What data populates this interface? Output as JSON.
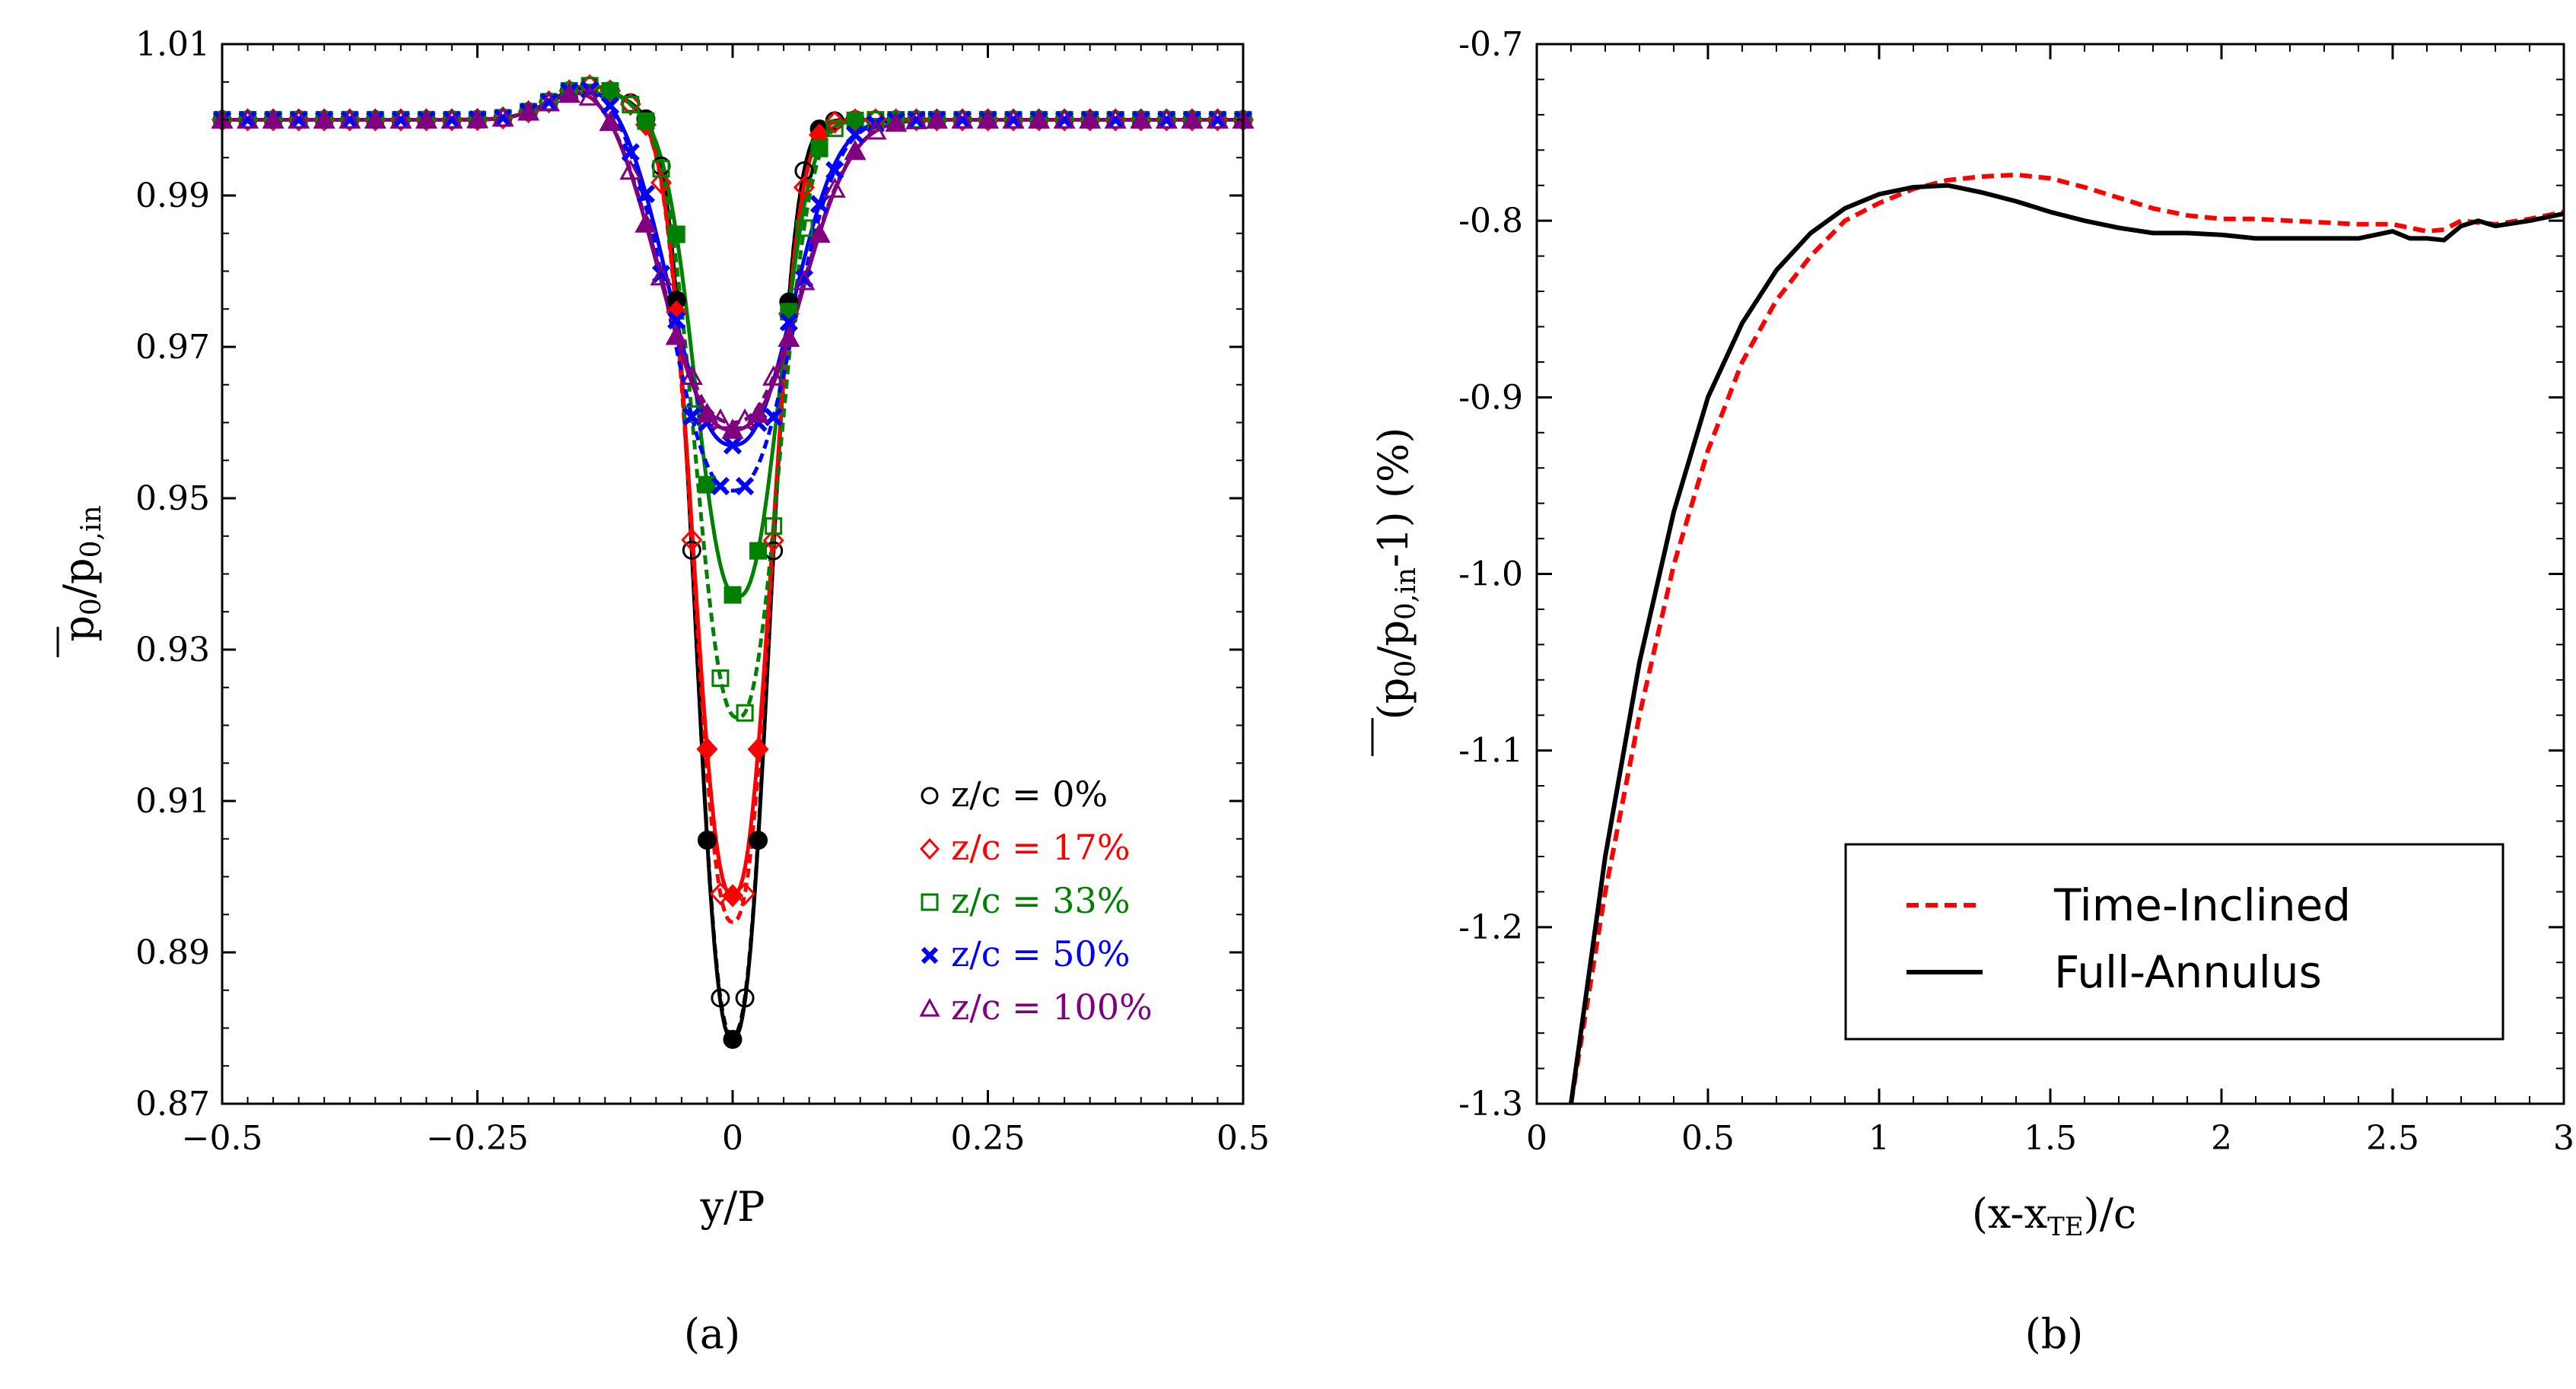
{
  "chart_data": [
    {
      "type": "line",
      "panel_label": "(a)",
      "xlabel": "y/P",
      "ylabel": "p0/p0,in (overlined)",
      "ylabel_main": "p",
      "ylabel_sub1": "0",
      "ylabel_slash": "/p",
      "ylabel_sub2": "0,in",
      "xlim": [
        -0.5,
        0.5
      ],
      "ylim": [
        0.87,
        1.01
      ],
      "xticks": [
        -0.5,
        -0.25,
        0,
        0.25,
        0.5
      ],
      "xtick_labels": [
        "−0.5",
        "−0.25",
        "0",
        "0.25",
        "0.5"
      ],
      "yticks": [
        0.87,
        0.89,
        0.91,
        0.93,
        0.95,
        0.97,
        0.99,
        1.01
      ],
      "ytick_labels": [
        "0.87",
        "0.89",
        "0.91",
        "0.93",
        "0.95",
        "0.97",
        "0.99",
        "1.01"
      ],
      "legend_location": "lower-right",
      "series": [
        {
          "name": "z/c = 0%",
          "label_text": "z/c = 0%",
          "color": "#000000",
          "marker": "circle",
          "center": 0.0,
          "base": 1.0,
          "min_a": 0.8785,
          "min_b": 0.879,
          "half_width": 0.045
        },
        {
          "name": "z/c = 17%",
          "label_text": "z/c = 17%",
          "color": "#ff0000",
          "marker": "diamond",
          "center": 0.0,
          "base": 1.0,
          "min_a": 0.8975,
          "min_b": 0.894,
          "half_width": 0.048
        },
        {
          "name": "z/c = 33%",
          "label_text": "z/c = 33%",
          "color": "#008000",
          "marker": "square",
          "center": 0.005,
          "base": 1.0,
          "min_a": 0.937,
          "min_b": 0.921,
          "half_width": 0.052
        },
        {
          "name": "z/c = 50%",
          "label_text": "z/c = 50%",
          "color": "#0000ff",
          "marker": "x",
          "center": 0.0,
          "base": 1.0,
          "min_a": 0.957,
          "min_b": 0.951,
          "half_width": 0.075
        },
        {
          "name": "z/c = 100%",
          "label_text": "z/c = 100%",
          "color": "#800080",
          "marker": "triangle",
          "center": 0.0,
          "base": 1.0,
          "min_a": 0.959,
          "min_b": 0.96,
          "half_width": 0.085
        }
      ]
    },
    {
      "type": "line",
      "panel_label": "(b)",
      "xlabel": "(x-xTE)/c",
      "xlabel_part1": "(x-x",
      "xlabel_sub": "TE",
      "xlabel_part2": ")/c",
      "ylabel": "(p0/p0,in-1) (%)",
      "ylabel_open": "(p",
      "ylabel_sub1": "0",
      "ylabel_slash": "/p",
      "ylabel_sub2": "0,in",
      "ylabel_tail": "-1) (%)",
      "xlim": [
        0,
        3
      ],
      "ylim": [
        -1.3,
        -0.7
      ],
      "xticks": [
        0,
        0.5,
        1,
        1.5,
        2,
        2.5,
        3
      ],
      "xtick_labels": [
        "0",
        "0.5",
        "1",
        "1.5",
        "2",
        "2.5",
        "3"
      ],
      "yticks": [
        -1.3,
        -1.2,
        -1.1,
        -1.0,
        -0.9,
        -0.8,
        -0.7
      ],
      "ytick_labels": [
        "-1.3",
        "-1.2",
        "-1.1",
        "-1.0",
        "-0.9",
        "-0.8",
        "-0.7"
      ],
      "legend_location": "lower-right",
      "series": [
        {
          "name": "Time-Inclined",
          "color": "#ff0000",
          "dashed": true,
          "x": [
            0.1,
            0.15,
            0.2,
            0.3,
            0.4,
            0.5,
            0.6,
            0.7,
            0.8,
            0.9,
            1.0,
            1.1,
            1.2,
            1.3,
            1.4,
            1.5,
            1.6,
            1.7,
            1.8,
            1.9,
            2.0,
            2.1,
            2.2,
            2.3,
            2.4,
            2.5,
            2.6,
            2.65,
            2.7,
            2.75,
            2.8,
            2.9,
            3.0
          ],
          "y": [
            -1.3,
            -1.24,
            -1.18,
            -1.08,
            -0.995,
            -0.93,
            -0.88,
            -0.845,
            -0.82,
            -0.8,
            -0.79,
            -0.782,
            -0.777,
            -0.775,
            -0.774,
            -0.776,
            -0.781,
            -0.787,
            -0.793,
            -0.797,
            -0.799,
            -0.799,
            -0.8,
            -0.801,
            -0.802,
            -0.802,
            -0.806,
            -0.805,
            -0.8,
            -0.801,
            -0.802,
            -0.799,
            -0.795
          ]
        },
        {
          "name": "Full-Annulus",
          "color": "#000000",
          "dashed": false,
          "x": [
            0.1,
            0.15,
            0.2,
            0.3,
            0.4,
            0.5,
            0.6,
            0.7,
            0.8,
            0.9,
            1.0,
            1.1,
            1.2,
            1.3,
            1.4,
            1.5,
            1.6,
            1.7,
            1.8,
            1.9,
            2.0,
            2.1,
            2.2,
            2.3,
            2.4,
            2.5,
            2.55,
            2.6,
            2.65,
            2.7,
            2.75,
            2.8,
            2.9,
            3.0
          ],
          "y": [
            -1.3,
            -1.23,
            -1.16,
            -1.05,
            -0.965,
            -0.9,
            -0.858,
            -0.828,
            -0.807,
            -0.793,
            -0.785,
            -0.781,
            -0.78,
            -0.784,
            -0.789,
            -0.795,
            -0.8,
            -0.804,
            -0.807,
            -0.807,
            -0.808,
            -0.81,
            -0.81,
            -0.81,
            -0.81,
            -0.806,
            -0.81,
            -0.81,
            -0.811,
            -0.803,
            -0.8,
            -0.803,
            -0.8,
            -0.796
          ]
        }
      ]
    }
  ]
}
